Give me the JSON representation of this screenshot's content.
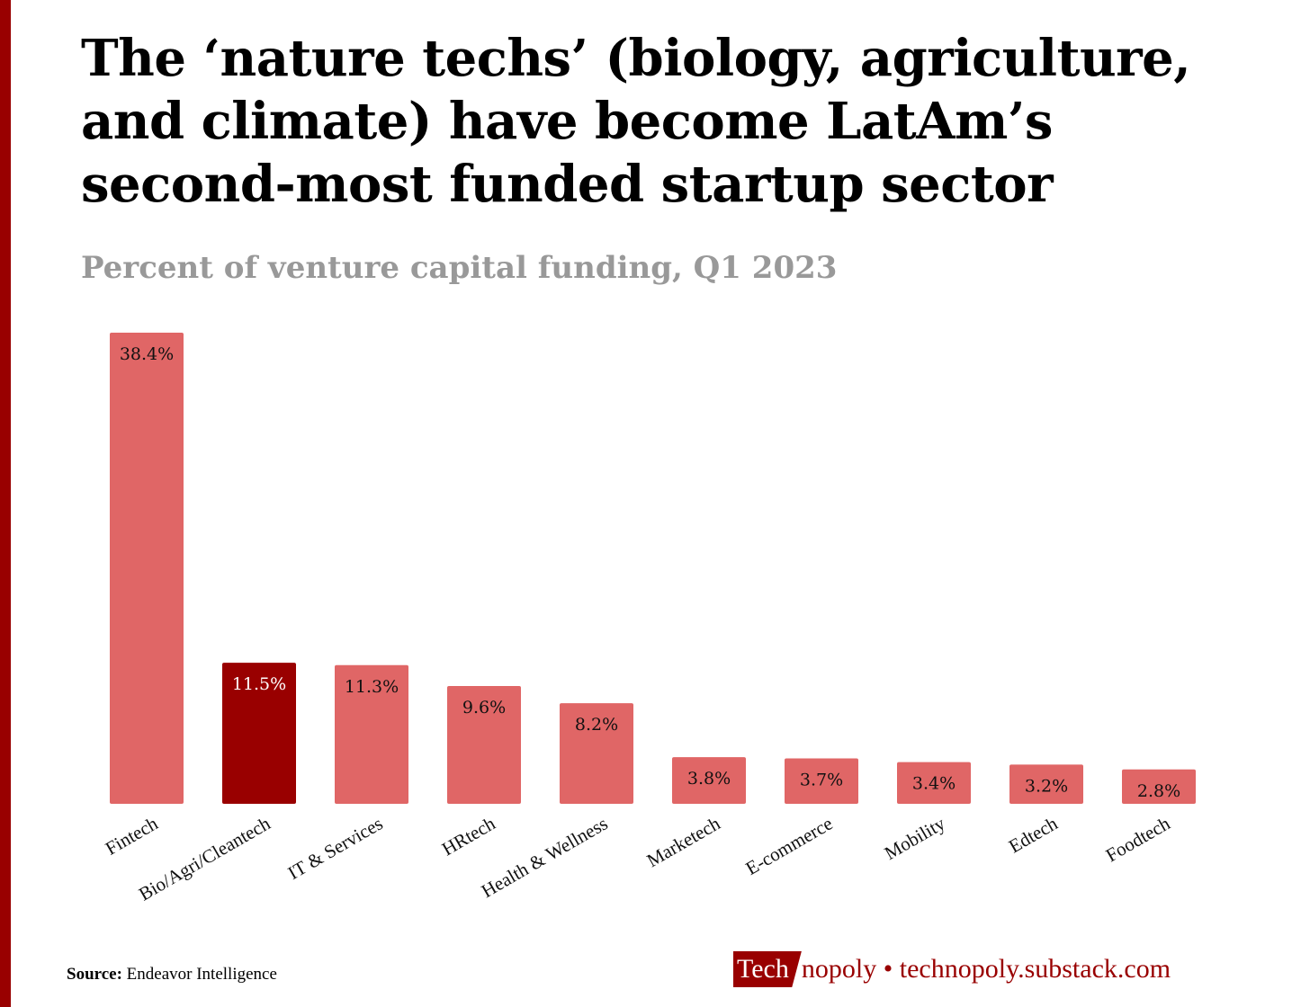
{
  "title": "The ‘nature techs’ (biology, agriculture, and climate) have become LatAm’s second-most funded startup sector",
  "subtitle": "Percent of venture capital funding, Q1 2023",
  "source": {
    "label": "Source:",
    "text": "Endeavor Intelligence"
  },
  "brand": {
    "highlight": "Tech",
    "rest": "nopoly",
    "separator": "•",
    "url": "technopoly.substack.com"
  },
  "colors": {
    "accent": "#990000",
    "bar": "#e06666",
    "highlight_bar": "#990000"
  },
  "chart_data": {
    "type": "bar",
    "title": "Percent of venture capital funding, Q1 2023",
    "xlabel": "",
    "ylabel": "",
    "ylim": [
      0,
      38.4
    ],
    "grid": false,
    "categories": [
      "Fintech",
      "Bio/Agri/Cleantech",
      "IT & Services",
      "HRtech",
      "Health & Wellness",
      "Marketech",
      "E-commerce",
      "Mobility",
      "Edtech",
      "Foodtech"
    ],
    "values": [
      38.4,
      11.5,
      11.3,
      9.6,
      8.2,
      3.8,
      3.7,
      3.4,
      3.2,
      2.8
    ],
    "labels": [
      "38.4%",
      "11.5%",
      "11.3%",
      "9.6%",
      "8.2%",
      "3.8%",
      "3.7%",
      "3.4%",
      "3.2%",
      "2.8%"
    ],
    "highlight": "Bio/Agri/Cleantech"
  }
}
